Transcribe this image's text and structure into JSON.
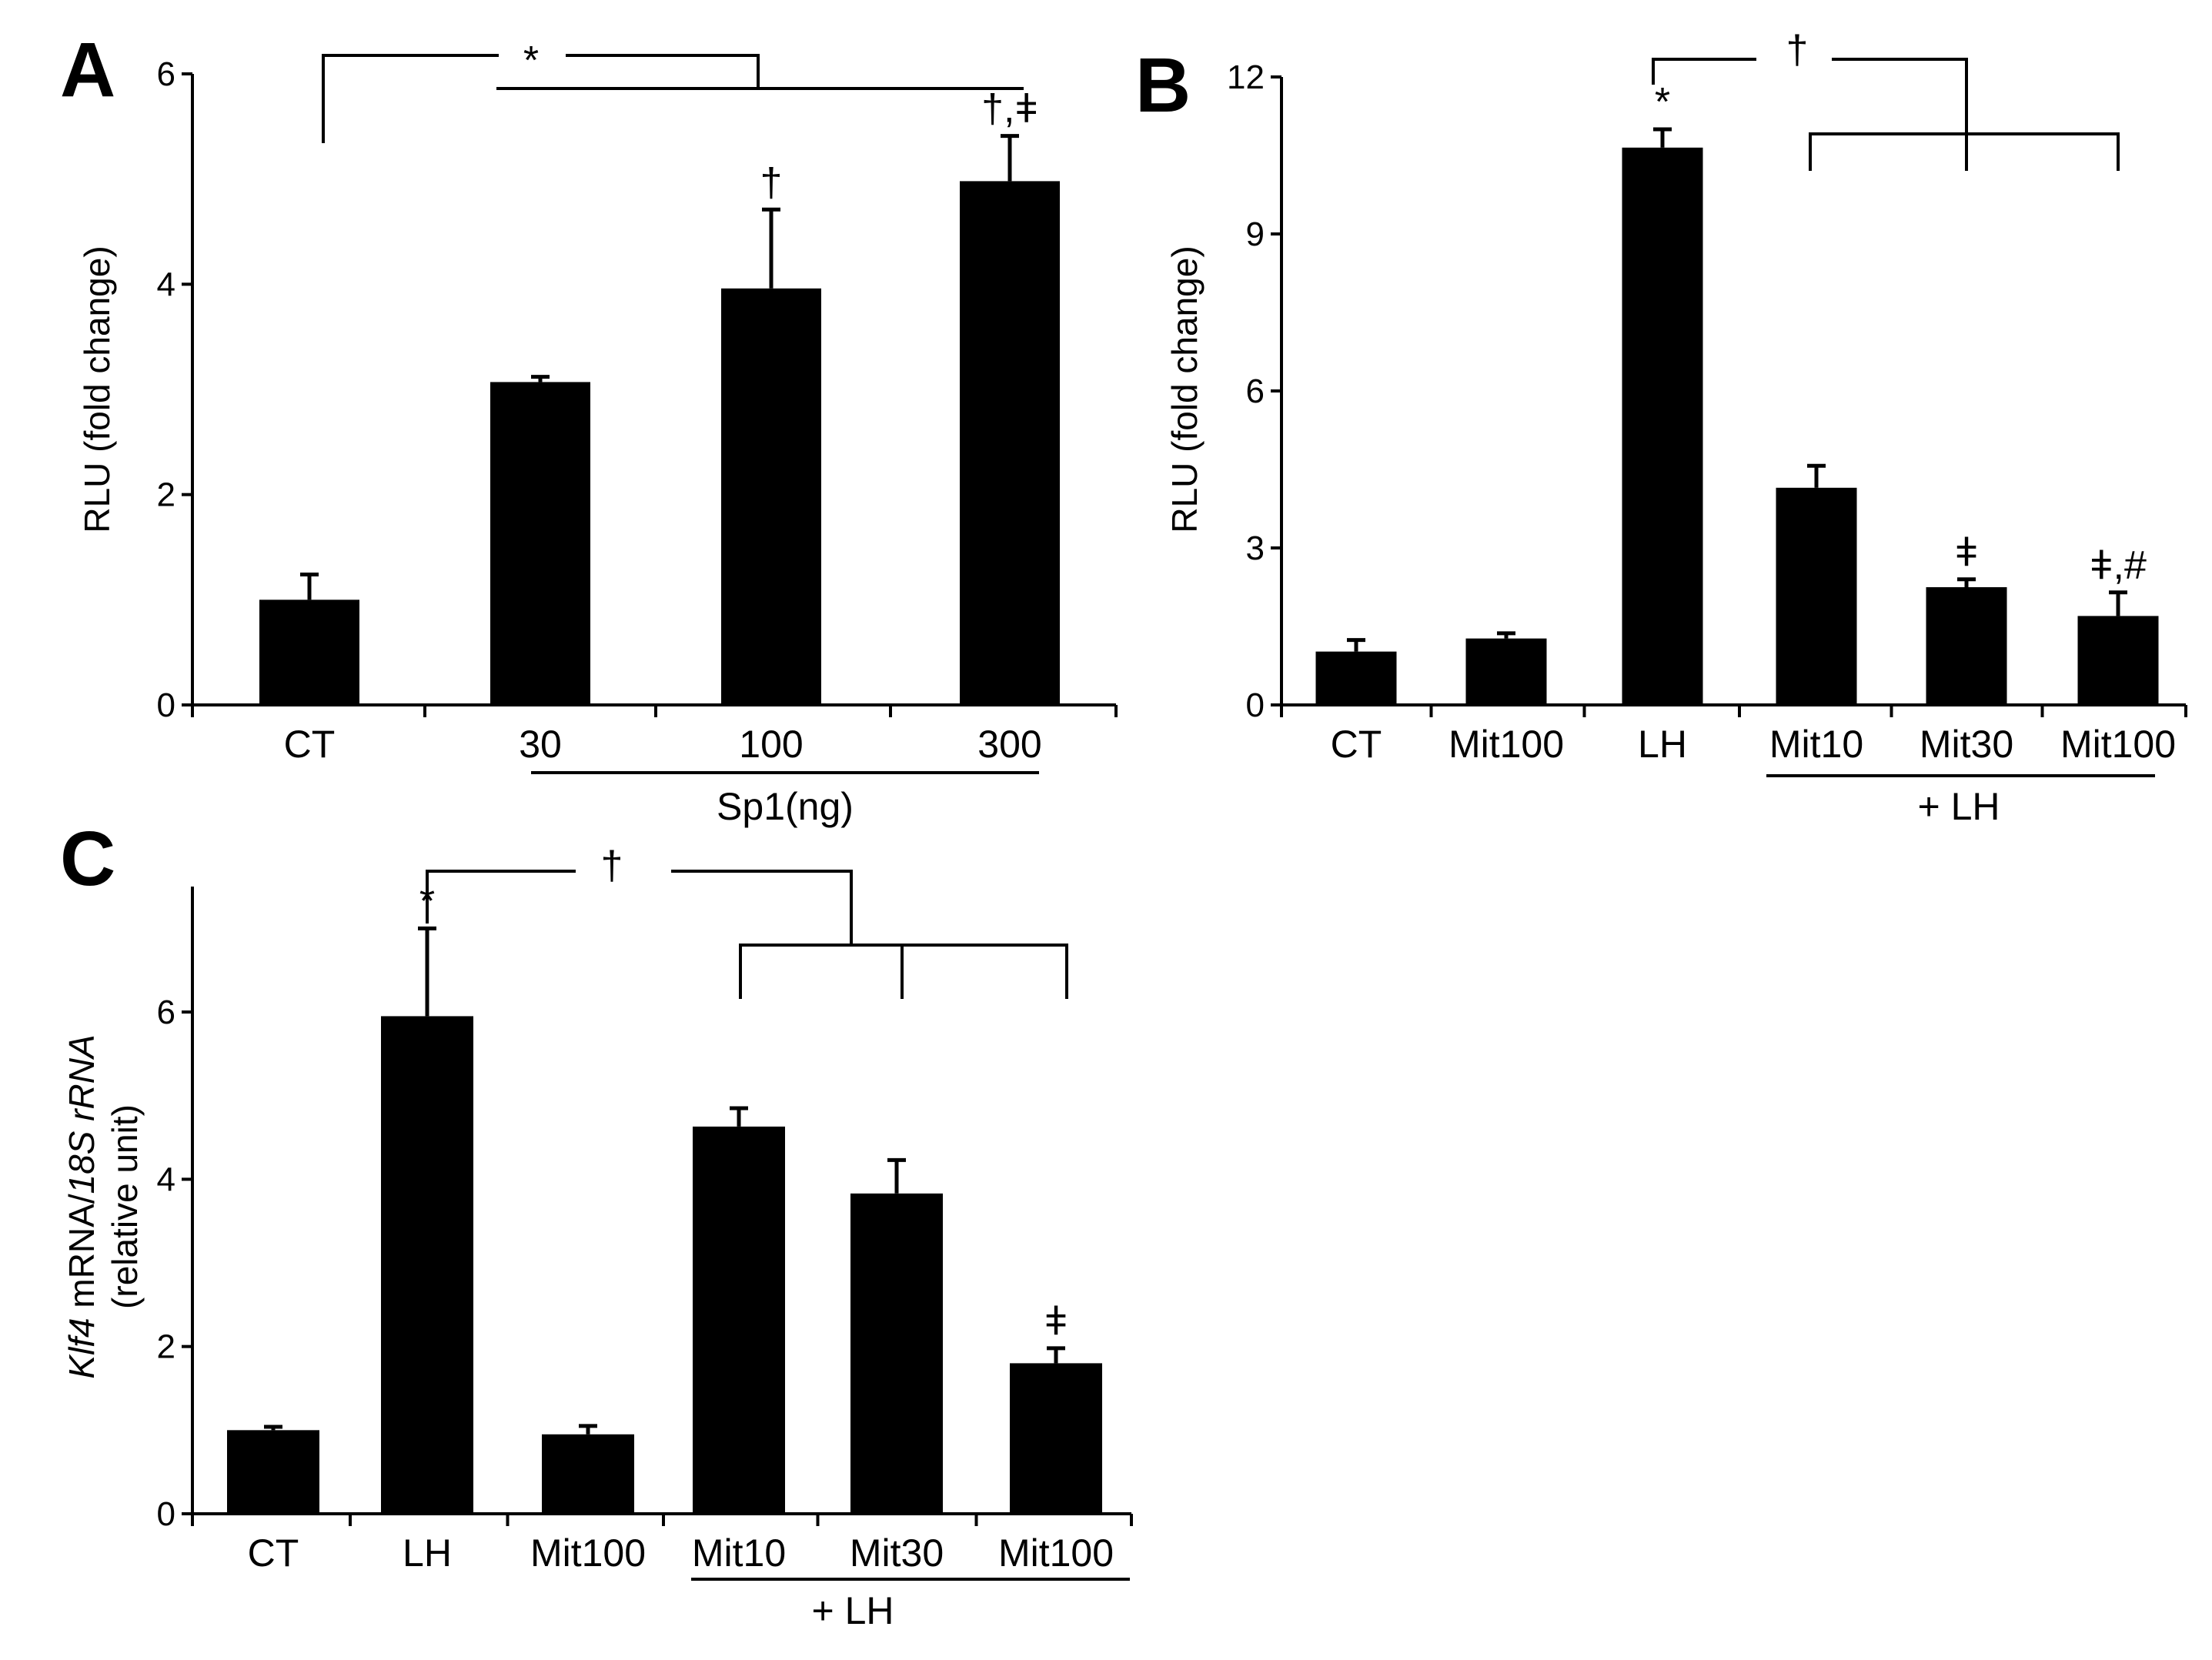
{
  "chart_data": [
    {
      "panel": "A",
      "type": "bar",
      "ylabel": "RLU (fold change)",
      "ylim": [
        0,
        6
      ],
      "yticks": [
        0,
        2,
        4,
        6
      ],
      "categories": [
        "CT",
        "30",
        "100",
        "300"
      ],
      "values": [
        1.0,
        3.07,
        3.96,
        4.98
      ],
      "errors": [
        0.24,
        0.05,
        0.75,
        0.43
      ],
      "group_label": "Sp1(ng)",
      "bar_marks": [
        "",
        "",
        "†",
        "†,ǂ"
      ],
      "bracket_mark": "*",
      "color": "#000000"
    },
    {
      "panel": "B",
      "type": "bar",
      "ylabel": "RLU (fold change)",
      "ylim": [
        0,
        12
      ],
      "yticks": [
        0,
        3,
        6,
        9,
        12
      ],
      "categories": [
        "CT",
        "Mit100",
        "LH",
        "Mit10",
        "Mit30",
        "Mit100"
      ],
      "values": [
        1.02,
        1.27,
        10.65,
        4.15,
        2.25,
        1.7
      ],
      "errors": [
        0.22,
        0.1,
        0.35,
        0.42,
        0.15,
        0.45
      ],
      "group_label": "+ LH",
      "bar_marks": [
        "",
        "",
        "*",
        "",
        "ǂ",
        "ǂ,#"
      ],
      "bracket_mark": "†",
      "color": "#000000"
    },
    {
      "panel": "C",
      "type": "bar",
      "ylabel_italic_1": "Klf4",
      "ylabel_plain": " mRNA/",
      "ylabel_italic_2": "18S rRNA",
      "ylabel_2": "(relative unit)",
      "ylim": [
        0,
        7.5
      ],
      "yticks": [
        0,
        2,
        4,
        6
      ],
      "categories": [
        "CT",
        "LH",
        "Mit100",
        "Mit10",
        "Mit30",
        "Mit100"
      ],
      "values": [
        1.0,
        5.95,
        0.95,
        4.63,
        3.83,
        1.8
      ],
      "errors": [
        0.04,
        1.05,
        0.1,
        0.22,
        0.4,
        0.18
      ],
      "group_label": "+ LH",
      "bar_marks": [
        "",
        "*",
        "",
        "",
        "",
        "ǂ"
      ],
      "bracket_mark": "†",
      "color": "#000000"
    }
  ]
}
